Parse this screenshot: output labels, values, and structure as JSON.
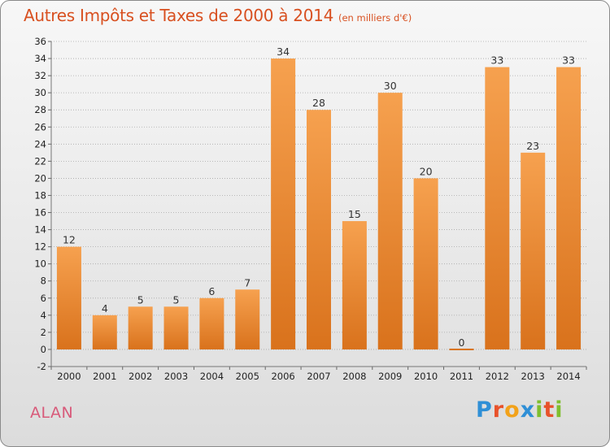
{
  "header": {
    "title": "Autres Impôts et Taxes de 2000 à 2014",
    "unit": "(en milliers d'€)"
  },
  "footer": {
    "commune": "ALAN",
    "logo": [
      "P",
      "r",
      "o",
      "x",
      "i",
      "t",
      "i"
    ]
  },
  "colors": {
    "bar_top": "#f6a14f",
    "bar_bottom": "#d9721c",
    "title": "#d85020",
    "commune": "#d85a7a",
    "grid": "#a8a8a8"
  },
  "chart_data": {
    "type": "bar",
    "title": "Autres Impôts et Taxes de 2000 à 2014",
    "subtitle": "(en milliers d'€)",
    "xlabel": "",
    "ylabel": "",
    "categories": [
      "2000",
      "2001",
      "2002",
      "2003",
      "2004",
      "2005",
      "2006",
      "2007",
      "2008",
      "2009",
      "2010",
      "2011",
      "2012",
      "2013",
      "2014"
    ],
    "values": [
      12,
      4,
      5,
      5,
      6,
      7,
      34,
      28,
      15,
      30,
      20,
      0,
      33,
      23,
      33
    ],
    "ylim": [
      -2,
      36
    ],
    "yticks": [
      -2,
      0,
      2,
      4,
      6,
      8,
      10,
      12,
      14,
      16,
      18,
      20,
      22,
      24,
      26,
      28,
      30,
      32,
      34,
      36
    ],
    "grid": true,
    "legend": "none"
  }
}
